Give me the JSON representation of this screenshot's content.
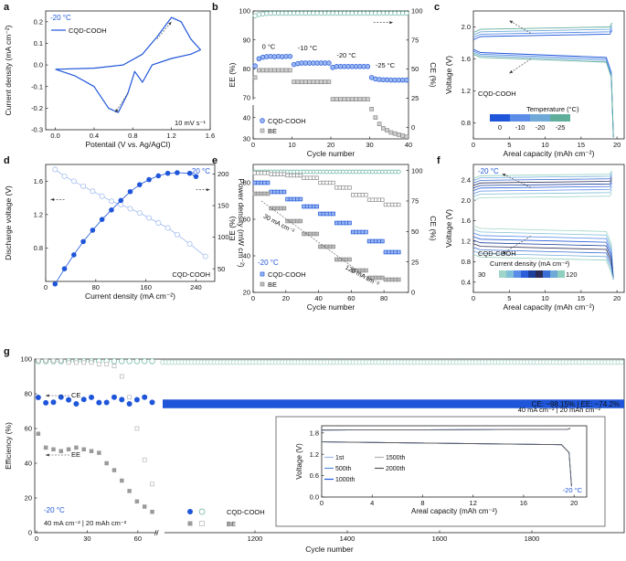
{
  "colors": {
    "blue": "#1f56d9",
    "light_blue": "#9db8f0",
    "grey": "#8a8a8a",
    "teal": "#5fae9c",
    "dark": "#222222"
  },
  "chart_data": [
    {
      "panel": "a",
      "type": "line",
      "title": "-20 °C",
      "xlabel": "Potentail (V vs. Ag/AgCl)",
      "ylabel": "Current density (mA cm⁻²)",
      "xlim": [
        -0.1,
        1.6
      ],
      "ylim": [
        -0.3,
        0.25
      ],
      "xticks": [
        "0.0",
        "0.4",
        "0.8",
        "1.2",
        "1.6"
      ],
      "yticks": [
        "-0.3",
        "-0.2",
        "-0.1",
        "0.0",
        "0.1",
        "0.2"
      ],
      "legend": [
        "CQD-COOH"
      ],
      "annotations": [
        "10 mV s⁻¹"
      ],
      "series": [
        {
          "name": "CQD-COOH",
          "points": [
            [
              0,
              -0.02
            ],
            [
              0.4,
              -0.015
            ],
            [
              0.7,
              0.0
            ],
            [
              0.9,
              0.05
            ],
            [
              1.05,
              0.13
            ],
            [
              1.2,
              0.22
            ],
            [
              1.3,
              0.2
            ],
            [
              1.4,
              0.12
            ],
            [
              1.5,
              0.07
            ],
            [
              1.4,
              0.05
            ],
            [
              1.2,
              0.03
            ],
            [
              1.0,
              0.0
            ],
            [
              0.9,
              -0.08
            ],
            [
              0.82,
              -0.03
            ],
            [
              0.75,
              -0.13
            ],
            [
              0.65,
              -0.22
            ],
            [
              0.55,
              -0.2
            ],
            [
              0.4,
              -0.1
            ],
            [
              0.2,
              -0.05
            ],
            [
              0,
              -0.02
            ]
          ]
        }
      ]
    },
    {
      "panel": "b",
      "type": "scatter",
      "xlabel": "Cycle number",
      "ylabel": "EE (%)",
      "y2label": "CE (%)",
      "xlim": [
        0,
        40
      ],
      "ylim": [
        30,
        100
      ],
      "y2lim": [
        -10,
        100
      ],
      "xticks": [
        "0",
        "10",
        "20",
        "30",
        "40"
      ],
      "yticks": [
        "30",
        "40",
        "70",
        "80",
        "90",
        "100"
      ],
      "y2ticks": [
        "0",
        "25",
        "50",
        "75",
        "100"
      ],
      "legend": [
        "CQD-COOH",
        "BE"
      ],
      "annotations": [
        "0 °C",
        "-10 °C",
        "-20 °C",
        "-25 °C"
      ],
      "series": [
        {
          "name": "CQD-COOH EE",
          "values": [
            81,
            83.5,
            84,
            84.2,
            84.3,
            84.2,
            84.3,
            84.2,
            84.3,
            84.3,
            81.5,
            81.8,
            82,
            82,
            82,
            82,
            82,
            82,
            82,
            82,
            80.5,
            80.8,
            80.8,
            80.8,
            80.8,
            80.8,
            80.8,
            80.8,
            80.8,
            80.8,
            77,
            76.5,
            76.3,
            76.2,
            76.2,
            76.1,
            76.1,
            76.1,
            76.1,
            76.1
          ]
        },
        {
          "name": "BE EE",
          "values": [
            77,
            79.5,
            79.5,
            79.5,
            79.5,
            79.5,
            79.5,
            79.5,
            79.5,
            79.5,
            75.5,
            75.5,
            75.5,
            75.5,
            75.5,
            75.5,
            75.5,
            75.5,
            75.5,
            75.5,
            69.5,
            69.5,
            69.5,
            69.5,
            69.5,
            69.5,
            69.5,
            69.5,
            69.5,
            69.5,
            44,
            40,
            37,
            35,
            34,
            33,
            32.5,
            32,
            31.5,
            31
          ]
        },
        {
          "name": "CQD-COOH CE",
          "values": [
            96,
            97,
            97.5,
            97.8,
            98,
            98,
            98,
            98,
            98,
            98,
            98,
            98,
            98,
            98,
            98,
            98,
            98,
            98,
            98,
            98,
            98,
            98,
            98,
            98,
            98,
            98,
            98,
            98,
            98,
            98,
            98,
            98,
            98,
            98,
            98,
            98,
            98,
            98,
            98,
            98
          ]
        }
      ]
    },
    {
      "panel": "c",
      "type": "line",
      "xlabel": "Areal capacity (mAh cm⁻²)",
      "ylabel": "Voltage (V)",
      "xlim": [
        0,
        21
      ],
      "ylim": [
        0.6,
        2.2
      ],
      "xticks": [
        "0",
        "5",
        "10",
        "15",
        "20"
      ],
      "yticks": [
        "0.8",
        "1.2",
        "1.6",
        "2.0"
      ],
      "legend_title": "Temperature (°C)",
      "legend": [
        "0",
        "-10",
        "-20",
        "-25"
      ],
      "label": "CQD-COOH",
      "series": [
        {
          "name": "charge",
          "values": [
            1.88,
            1.91,
            1.94,
            1.97
          ]
        },
        {
          "name": "discharge",
          "values": [
            1.68,
            1.66,
            1.64,
            1.62
          ]
        }
      ]
    },
    {
      "panel": "d",
      "type": "scatter",
      "title": "-20 °C",
      "xlabel": "Current density (mA cm⁻²)",
      "ylabel": "Discharge voltage (V)",
      "y2label": "Power density (mW cm⁻²)",
      "label": "CQD-COOH",
      "xlim": [
        0,
        270
      ],
      "ylim": [
        0.4,
        1.8
      ],
      "y2lim": [
        30,
        215
      ],
      "xticks": [
        "0",
        "80",
        "160",
        "240"
      ],
      "yticks": [
        "0.8",
        "1.2",
        "1.6"
      ],
      "y2ticks": [
        "50",
        "100",
        "150",
        "200"
      ],
      "series": [
        {
          "name": "Discharge voltage",
          "x": [
            15,
            30,
            45,
            60,
            75,
            90,
            105,
            120,
            135,
            150,
            165,
            180,
            195,
            210,
            230,
            255
          ],
          "values": [
            1.74,
            1.66,
            1.6,
            1.54,
            1.48,
            1.42,
            1.36,
            1.32,
            1.27,
            1.22,
            1.16,
            1.1,
            1.04,
            0.96,
            0.85,
            0.7
          ]
        },
        {
          "name": "Power density",
          "x": [
            15,
            30,
            45,
            60,
            75,
            90,
            105,
            120,
            135,
            150,
            165,
            180,
            195,
            210,
            230,
            240
          ],
          "values": [
            26,
            50,
            72,
            93,
            111,
            128,
            143,
            158,
            172,
            183,
            191,
            197,
            201,
            202,
            201,
            196
          ]
        }
      ]
    },
    {
      "panel": "e",
      "type": "scatter",
      "title": "-20 °C",
      "xlabel": "Cycle number",
      "ylabel": "EE (%)",
      "y2label": "CE (%)",
      "xlim": [
        0,
        95
      ],
      "ylim": [
        20,
        90
      ],
      "y2lim": [
        0,
        105
      ],
      "xticks": [
        "0",
        "20",
        "40",
        "60",
        "80"
      ],
      "yticks": [
        "20",
        "40",
        "60",
        "80"
      ],
      "y2ticks": [
        "0",
        "25",
        "50",
        "75",
        "100"
      ],
      "legend": [
        "CQD-COOH",
        "BE"
      ],
      "annotations": [
        "30 mA cm⁻²",
        "120 mA cm⁻²"
      ],
      "series": [
        {
          "name": "CQD-COOH EE",
          "steps": [
            80,
            75,
            71,
            67,
            63,
            58,
            53,
            48,
            42
          ]
        },
        {
          "name": "BE EE",
          "steps": [
            74,
            66,
            59,
            52,
            45,
            38,
            32,
            28,
            27
          ]
        },
        {
          "name": "CQD-COOH CE",
          "value": 99
        },
        {
          "name": "BE CE",
          "values": [
            98,
            97,
            96,
            94,
            90,
            86,
            80,
            76,
            72
          ]
        }
      ]
    },
    {
      "panel": "f",
      "type": "line",
      "title": "-20 °C",
      "xlabel": "Areal capacity (mAh cm⁻²)",
      "ylabel": "Voltage (V)",
      "xlim": [
        0,
        21
      ],
      "ylim": [
        0.2,
        2.7
      ],
      "xticks": [
        "0",
        "5",
        "10",
        "15",
        "20"
      ],
      "yticks": [
        "0.4",
        "0.8",
        "1.2",
        "1.6",
        "2.0",
        "2.4"
      ],
      "legend_title": "Current density (mA cm⁻²)",
      "legend": [
        "30",
        "120"
      ],
      "label": "CQD-COOH",
      "series": [
        {
          "name": "charge",
          "values": [
            2.05,
            2.12,
            2.18,
            2.24,
            2.29,
            2.34,
            2.39,
            2.44,
            2.48
          ]
        },
        {
          "name": "discharge",
          "values": [
            1.45,
            1.38,
            1.31,
            1.24,
            1.17,
            1.1,
            1.03,
            0.96,
            0.89
          ]
        }
      ]
    },
    {
      "panel": "g",
      "type": "scatter",
      "xlabel": "Cycle number",
      "ylabel": "Efficiency (%)",
      "xlim": [
        0,
        2000
      ],
      "ylim": [
        0,
        100
      ],
      "xticks": [
        "0",
        "30",
        "60",
        "1200",
        "1400",
        "1600",
        "1800"
      ],
      "yticks": [
        "0",
        "20",
        "40",
        "60",
        "80",
        "100"
      ],
      "legend": [
        "CQD-COOH",
        "BE"
      ],
      "labels": [
        "CE",
        "EE",
        "-20 °C",
        "40 mA cm⁻² | 20 mAh cm⁻²"
      ],
      "summary": "CE: ~98.15%  |  EE: ~74.2%",
      "series": [
        {
          "name": "CQD-COOH CE",
          "value": 98.15
        },
        {
          "name": "CQD-COOH EE",
          "value": 74.2
        },
        {
          "name": "BE CE",
          "values": [
            99,
            99,
            99,
            99,
            98,
            98,
            98,
            98,
            97,
            97,
            96,
            90,
            78,
            60,
            42,
            28
          ]
        },
        {
          "name": "BE EE",
          "values": [
            57,
            49,
            48,
            47,
            48,
            49,
            48,
            47,
            46,
            40,
            36,
            30,
            24,
            18,
            15,
            12
          ]
        }
      ],
      "inset": {
        "xlabel": "Areal capacity (mAh cm⁻²)",
        "ylabel": "Voltage (V)",
        "xlim": [
          0,
          21
        ],
        "ylim": [
          0,
          2
        ],
        "xticks": [
          "0",
          "4",
          "8",
          "12",
          "16",
          "20"
        ],
        "yticks": [
          "0.0",
          "0.6",
          "1.2",
          "1.8"
        ],
        "legend": [
          "1st",
          "500th",
          "1000th",
          "1500th",
          "2000th"
        ],
        "labels": [
          "-20 °C",
          "40 mA cm⁻² | 20 mAh cm⁻²"
        ]
      }
    }
  ]
}
